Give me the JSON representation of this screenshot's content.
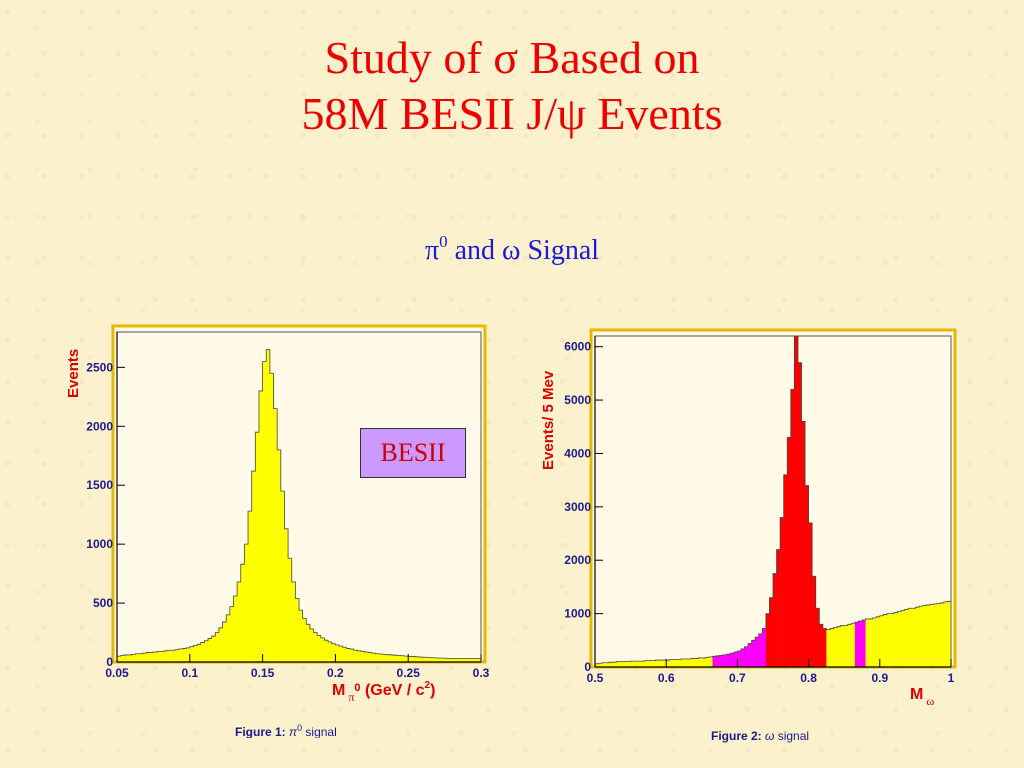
{
  "title": {
    "line1": "Study of σ Based on",
    "line2": "58M BESII J/ψ Events"
  },
  "subtitle": {
    "pi": "π",
    "sup": "0",
    "rest": " and ω Signal"
  },
  "badge": "BESII",
  "colors": {
    "title": "#ee0000",
    "subtitle": "#1a1adb",
    "frame": "#e8b800",
    "pi0_fill": "#ffff00",
    "omega_fill": "#ffff00",
    "omega_peak": "#ff0000",
    "omega_side": "#ff00ff",
    "badge_bg": "#cc99ff"
  },
  "chart_data": [
    {
      "type": "bar",
      "ylabel": "Events",
      "xlabel_parts": [
        "M",
        "π",
        "0",
        "(GeV / c",
        "2",
        ")"
      ],
      "caption_parts": [
        "Figure 1: ",
        "π",
        "0",
        " signal"
      ],
      "xlim": [
        0.05,
        0.3
      ],
      "ylim": [
        0,
        2800
      ],
      "xticks": [
        {
          "v": 0.05,
          "t": "0.05"
        },
        {
          "v": 0.1,
          "t": "0.1"
        },
        {
          "v": 0.15,
          "t": "0.15"
        },
        {
          "v": 0.2,
          "t": "0.2"
        },
        {
          "v": 0.25,
          "t": "0.25"
        },
        {
          "v": 0.3,
          "t": "0.3"
        }
      ],
      "yticks": [
        {
          "v": 0,
          "t": "0"
        },
        {
          "v": 500,
          "t": "500"
        },
        {
          "v": 1000,
          "t": "1000"
        },
        {
          "v": 1500,
          "t": "1500"
        },
        {
          "v": 2000,
          "t": "2000"
        },
        {
          "v": 2500,
          "t": "2500"
        }
      ],
      "bin_width": 0.0025,
      "x_start": 0.05,
      "values": [
        50,
        55,
        60,
        60,
        65,
        70,
        70,
        75,
        80,
        80,
        85,
        90,
        90,
        95,
        100,
        100,
        105,
        110,
        115,
        120,
        130,
        140,
        150,
        165,
        180,
        200,
        220,
        250,
        290,
        340,
        400,
        470,
        560,
        680,
        830,
        1000,
        1280,
        1620,
        1950,
        2300,
        2550,
        2650,
        2450,
        2150,
        1800,
        1450,
        1130,
        880,
        680,
        540,
        440,
        370,
        320,
        280,
        250,
        225,
        205,
        185,
        170,
        155,
        145,
        135,
        125,
        115,
        110,
        100,
        95,
        90,
        85,
        80,
        75,
        70,
        68,
        65,
        62,
        60,
        58,
        55,
        53,
        50,
        48,
        46,
        44,
        42,
        40,
        38,
        36,
        35,
        34,
        33,
        32,
        31,
        30,
        30,
        30,
        30,
        30,
        30,
        30,
        30
      ]
    },
    {
      "type": "bar",
      "ylabel": "Events/ 5 Mev",
      "xlabel_parts": [
        "M",
        "ω"
      ],
      "caption_parts": [
        "Figure 2: ",
        "ω",
        " signal"
      ],
      "xlim": [
        0.5,
        1.0
      ],
      "ylim": [
        0,
        6200
      ],
      "xticks": [
        {
          "v": 0.5,
          "t": "0.5"
        },
        {
          "v": 0.6,
          "t": "0.6"
        },
        {
          "v": 0.7,
          "t": "0.7"
        },
        {
          "v": 0.8,
          "t": "0.8"
        },
        {
          "v": 0.9,
          "t": "0.9"
        },
        {
          "v": 1.0,
          "t": "1"
        }
      ],
      "yticks": [
        {
          "v": 0,
          "t": "0"
        },
        {
          "v": 1000,
          "t": "1000"
        },
        {
          "v": 2000,
          "t": "2000"
        },
        {
          "v": 3000,
          "t": "3000"
        },
        {
          "v": 4000,
          "t": "4000"
        },
        {
          "v": 5000,
          "t": "5000"
        },
        {
          "v": 6000,
          "t": "6000"
        }
      ],
      "bin_width": 0.005,
      "x_start": 0.5,
      "values": [
        60,
        70,
        80,
        80,
        90,
        90,
        100,
        100,
        100,
        100,
        110,
        110,
        110,
        110,
        120,
        120,
        120,
        130,
        130,
        130,
        130,
        140,
        140,
        140,
        150,
        150,
        150,
        160,
        160,
        170,
        170,
        180,
        190,
        200,
        210,
        220,
        230,
        240,
        260,
        280,
        300,
        340,
        380,
        440,
        500,
        560,
        620,
        720,
        1000,
        1300,
        1750,
        2200,
        2800,
        3600,
        4300,
        5200,
        6200,
        5700,
        4600,
        3400,
        2700,
        1700,
        1100,
        800,
        720,
        700,
        720,
        740,
        760,
        780,
        780,
        800,
        820,
        840,
        860,
        880,
        900,
        900,
        920,
        940,
        960,
        980,
        1000,
        1000,
        1020,
        1040,
        1060,
        1080,
        1100,
        1100,
        1120,
        1140,
        1150,
        1160,
        1170,
        1180,
        1190,
        1200,
        1220,
        1230
      ],
      "regions": [
        {
          "from": 0.665,
          "to": 0.74,
          "color": "#ff00ff",
          "label": "sideband"
        },
        {
          "from": 0.74,
          "to": 0.825,
          "color": "#ff0000",
          "label": "signal"
        },
        {
          "from": 0.865,
          "to": 0.88,
          "color": "#ff00ff",
          "label": "sideband"
        }
      ]
    }
  ]
}
